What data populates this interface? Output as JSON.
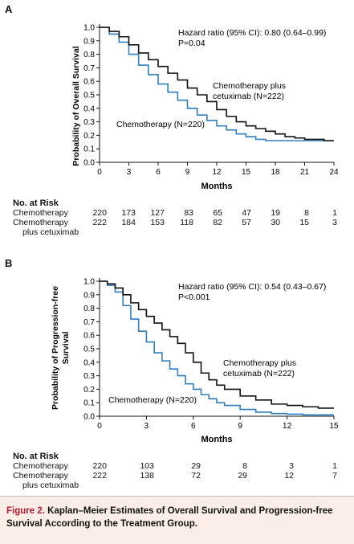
{
  "panels": [
    {
      "letter": "A",
      "ylabel": "Probability of Overall Survival",
      "xlabel": "Months",
      "annotation": {
        "line1": "Hazard ratio (95% CI): 0.80 (0.64–0.99)",
        "line2": "P=0.04"
      },
      "labels": {
        "cetuximab_line1": "Chemotherapy plus",
        "cetuximab_line2": "cetuximab (N=222)",
        "chemo": "Chemotherapy (N=220)"
      },
      "risk": {
        "title": "No. at Risk",
        "chemo_label": "Chemotherapy",
        "cetux_label_line1": "Chemotherapy",
        "cetux_label_line2": "plus cetuximab",
        "chemo_values": [
          "220",
          "173",
          "127",
          "83",
          "65",
          "47",
          "19",
          "8",
          "1"
        ],
        "cetux_values": [
          "222",
          "184",
          "153",
          "118",
          "82",
          "57",
          "30",
          "15",
          "3"
        ]
      }
    },
    {
      "letter": "B",
      "ylabel_line1": "Probability of Progression-free",
      "ylabel_line2": "Survival",
      "xlabel": "Months",
      "annotation": {
        "line1": "Hazard ratio (95% CI): 0.54 (0.43–0.67)",
        "line2": "P<0.001"
      },
      "labels": {
        "cetuximab_line1": "Chemotherapy plus",
        "cetuximab_line2": "cetuximab (N=222)",
        "chemo": "Chemotherapy (N=220)"
      },
      "risk": {
        "title": "No. at Risk",
        "chemo_label": "Chemotherapy",
        "cetux_label_line1": "Chemotherapy",
        "cetux_label_line2": "plus cetuximab",
        "chemo_values": [
          "220",
          "103",
          "29",
          "8",
          "3",
          "1"
        ],
        "cetux_values": [
          "222",
          "138",
          "72",
          "29",
          "12",
          "7"
        ]
      }
    }
  ],
  "caption": {
    "lead": "Figure 2.",
    "text": "Kaplan–Meier Estimates of Overall Survival and Progression-free Survival According to the Treatment Group."
  },
  "colors": {
    "chemotherapy": "#2f7fc1",
    "cetuximab": "#111111",
    "caption_lead": "#b4182d",
    "caption_bg": "#fbeee6"
  },
  "chart_data": [
    {
      "type": "line",
      "title": "",
      "xlabel": "Months",
      "ylabel": "Probability of Overall Survival",
      "xlim": [
        0,
        24
      ],
      "ylim": [
        0,
        1.0
      ],
      "xticks": [
        0,
        3,
        6,
        9,
        12,
        15,
        18,
        21,
        24
      ],
      "yticks": [
        0.0,
        0.1,
        0.2,
        0.3,
        0.4,
        0.5,
        0.6,
        0.7,
        0.8,
        0.9,
        1.0
      ],
      "ytick_labels": [
        "0.0",
        "0.1",
        "0.2",
        "0.3",
        "0.4",
        "0.5",
        "0.6",
        "0.7",
        "0.8",
        "0.9",
        "1.0"
      ],
      "step": true,
      "series": [
        {
          "name": "Chemotherapy plus cetuximab (N=222)",
          "color": "#111111",
          "x": [
            0,
            1,
            2,
            3,
            4,
            5,
            6,
            7,
            8,
            9,
            10,
            11,
            12,
            13,
            14,
            15,
            16,
            17,
            18,
            19,
            20,
            21,
            22,
            23,
            24
          ],
          "y": [
            1.0,
            0.97,
            0.93,
            0.87,
            0.81,
            0.76,
            0.71,
            0.66,
            0.61,
            0.55,
            0.5,
            0.45,
            0.39,
            0.34,
            0.3,
            0.27,
            0.25,
            0.23,
            0.21,
            0.19,
            0.18,
            0.17,
            0.17,
            0.16,
            0.16
          ]
        },
        {
          "name": "Chemotherapy (N=220)",
          "color": "#2f7fc1",
          "x": [
            0,
            1,
            2,
            3,
            4,
            5,
            6,
            7,
            8,
            9,
            10,
            11,
            12,
            13,
            14,
            15,
            16,
            17,
            18,
            19,
            20,
            21,
            22,
            23,
            24
          ],
          "y": [
            1.0,
            0.95,
            0.89,
            0.8,
            0.72,
            0.65,
            0.58,
            0.52,
            0.46,
            0.4,
            0.35,
            0.31,
            0.27,
            0.24,
            0.21,
            0.19,
            0.17,
            0.16,
            0.16,
            0.16,
            0.16,
            0.16,
            0.16,
            0.16,
            0.16
          ]
        }
      ]
    },
    {
      "type": "line",
      "title": "",
      "xlabel": "Months",
      "ylabel": "Probability of Progression-free Survival",
      "xlim": [
        0,
        15
      ],
      "ylim": [
        0,
        1.0
      ],
      "xticks": [
        0,
        3,
        6,
        9,
        12,
        15
      ],
      "yticks": [
        0.0,
        0.1,
        0.2,
        0.3,
        0.4,
        0.5,
        0.6,
        0.7,
        0.8,
        0.9,
        1.0
      ],
      "ytick_labels": [
        "0.0",
        "0.1",
        "0.2",
        "0.3",
        "0.4",
        "0.5",
        "0.6",
        "0.7",
        "0.8",
        "0.9",
        "1.0"
      ],
      "step": true,
      "series": [
        {
          "name": "Chemotherapy plus cetuximab (N=222)",
          "color": "#111111",
          "x": [
            0,
            0.5,
            1,
            1.5,
            2,
            2.5,
            3,
            3.5,
            4,
            4.5,
            5,
            5.5,
            6,
            6.5,
            7,
            7.5,
            8,
            9,
            10,
            11,
            12,
            13,
            14,
            15
          ],
          "y": [
            1.0,
            0.98,
            0.95,
            0.9,
            0.84,
            0.79,
            0.74,
            0.69,
            0.64,
            0.59,
            0.54,
            0.47,
            0.4,
            0.32,
            0.27,
            0.23,
            0.2,
            0.15,
            0.12,
            0.09,
            0.08,
            0.07,
            0.06,
            0.06
          ]
        },
        {
          "name": "Chemotherapy (N=220)",
          "color": "#2f7fc1",
          "x": [
            0,
            0.5,
            1,
            1.5,
            2,
            2.5,
            3,
            3.5,
            4,
            4.5,
            5,
            5.5,
            6,
            6.5,
            7,
            7.5,
            8,
            9,
            10,
            11,
            12,
            13,
            14,
            15
          ],
          "y": [
            1.0,
            0.97,
            0.92,
            0.82,
            0.72,
            0.63,
            0.55,
            0.47,
            0.41,
            0.35,
            0.3,
            0.24,
            0.2,
            0.16,
            0.13,
            0.1,
            0.08,
            0.05,
            0.03,
            0.02,
            0.015,
            0.01,
            0.01,
            0.01
          ]
        }
      ]
    }
  ]
}
